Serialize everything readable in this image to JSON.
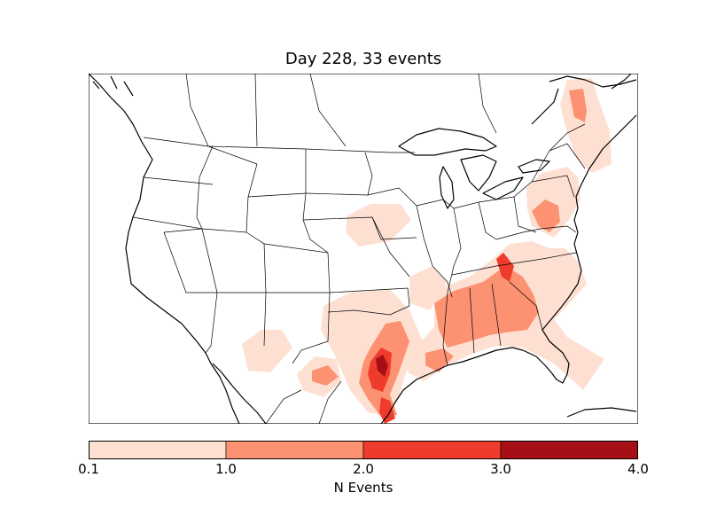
{
  "title": "Day 228, 33 events",
  "colorbar": {
    "label": "N Events",
    "ticks": [
      "0.1",
      "1.0",
      "2.0",
      "3.0",
      "4.0"
    ],
    "levels": [
      0.1,
      1.0,
      2.0,
      3.0,
      4.0
    ],
    "colors": [
      "#fde0d2",
      "#fc9272",
      "#ef3b2c",
      "#a50f15"
    ]
  },
  "map": {
    "projection": "lambert-conformal",
    "region": "North America (CONUS)",
    "colormap": "Reds"
  }
}
